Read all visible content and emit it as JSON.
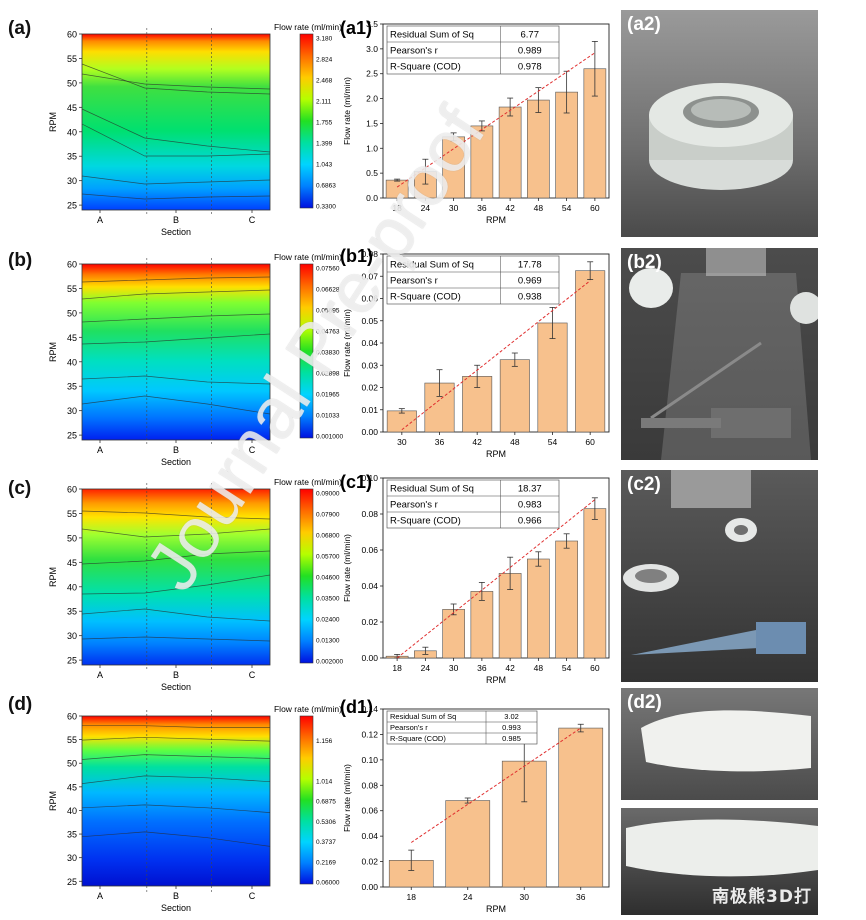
{
  "panels": [
    {
      "id": "a",
      "label": "(a)",
      "bar_label": "(a1)",
      "photo_label": "(a2)",
      "colorbar_title": "Flow rate (ml/min)",
      "colorbar_ticks": [
        "3.180",
        "2.824",
        "2.468",
        "2.111",
        "1.755",
        "1.399",
        "1.043",
        "0.6863",
        "0.3300"
      ],
      "stats": {
        "rows": [
          [
            "Residual Sum of Sq",
            "6.77"
          ],
          [
            "Pearson's r",
            "0.989"
          ],
          [
            "R-Square (COD)",
            "0.978"
          ]
        ]
      }
    },
    {
      "id": "b",
      "label": "(b)",
      "bar_label": "(b1)",
      "photo_label": "(b2)",
      "colorbar_title": "Flow rate (ml/min)",
      "colorbar_ticks": [
        "0.07560",
        "0.06628",
        "0.05695",
        "0.04763",
        "0.03830",
        "0.02898",
        "0.01965",
        "0.01033",
        "0.001000"
      ],
      "stats": {
        "rows": [
          [
            "Residual Sum of Sq",
            "17.78"
          ],
          [
            "Pearson's r",
            "0.969"
          ],
          [
            "R-Square (COD)",
            "0.938"
          ]
        ]
      }
    },
    {
      "id": "c",
      "label": "(c)",
      "bar_label": "(c1)",
      "photo_label": "(c2)",
      "colorbar_title": "Flow rate (ml/min)",
      "colorbar_ticks": [
        "0.09000",
        "0.07900",
        "0.06800",
        "0.05700",
        "0.04600",
        "0.03500",
        "0.02400",
        "0.01300",
        "0.002000"
      ],
      "stats": {
        "rows": [
          [
            "Residual Sum of Sq",
            "18.37"
          ],
          [
            "Pearson's r",
            "0.983"
          ],
          [
            "R-Square (COD)",
            "0.966"
          ]
        ]
      }
    },
    {
      "id": "d",
      "label": "(d)",
      "bar_label": "(d1)",
      "photo_label": "(d2)",
      "colorbar_title": "Flow rate (ml/min)",
      "colorbar_ticks": [
        "",
        "1.156",
        "",
        "1.014",
        "0.6875",
        "0.5306",
        "0.3737",
        "0.2169",
        "0.06000"
      ],
      "stats": {
        "rows": [
          [
            "Residual Sum of Sq",
            "3.02"
          ],
          [
            "Pearson's r",
            "0.993"
          ],
          [
            "R-Square (COD)",
            "0.985"
          ]
        ]
      }
    }
  ],
  "photo_watermark": "南极熊3D打",
  "watermark": "Journal Pre-proof",
  "contour_axes": {
    "xlabel": "Section",
    "ylabel": "RPM",
    "categories": [
      "A",
      "B",
      "C"
    ],
    "yticks": [
      25,
      30,
      35,
      40,
      45,
      50,
      55,
      60
    ],
    "ylim": [
      24,
      60
    ]
  },
  "colors": {
    "bar": "#f7c18d",
    "bar_edge": "#555555",
    "fit_line": "#e03030"
  },
  "chart_data": [
    {
      "type": "bar",
      "xlabel": "RPM",
      "ylabel": "Flow rate (ml/min)",
      "categories": [
        "18",
        "24",
        "30",
        "36",
        "42",
        "48",
        "54",
        "60"
      ],
      "values": [
        0.36,
        0.53,
        1.23,
        1.45,
        1.83,
        1.97,
        2.13,
        2.6
      ],
      "errors": [
        0.02,
        0.25,
        0.08,
        0.1,
        0.18,
        0.25,
        0.42,
        0.55
      ],
      "ylim": [
        0,
        3.5
      ],
      "yticks": [
        0.0,
        0.5,
        1.0,
        1.5,
        2.0,
        2.5,
        3.0,
        3.5
      ],
      "ytick_labels": [
        "0.0",
        "0.5",
        "1.0",
        "1.5",
        "2.0",
        "2.5",
        "3.0",
        "3.5"
      ],
      "fit": [
        0.22,
        2.92
      ]
    },
    {
      "type": "bar",
      "xlabel": "RPM",
      "ylabel": "Flow rate (ml/min)",
      "categories": [
        "30",
        "36",
        "42",
        "48",
        "54",
        "60"
      ],
      "values": [
        0.0095,
        0.022,
        0.025,
        0.0325,
        0.049,
        0.0725
      ],
      "errors": [
        0.001,
        0.006,
        0.005,
        0.003,
        0.007,
        0.004
      ],
      "ylim": [
        0,
        0.08
      ],
      "yticks": [
        0,
        0.01,
        0.02,
        0.03,
        0.04,
        0.05,
        0.06,
        0.07,
        0.08
      ],
      "ytick_labels": [
        "0.00",
        "0.01",
        "0.02",
        "0.03",
        "0.04",
        "0.05",
        "0.06",
        "0.07",
        "0.08"
      ],
      "fit": [
        0.001,
        0.068
      ]
    },
    {
      "type": "bar",
      "xlabel": "RPM",
      "ylabel": "Flow rate (ml/min)",
      "categories": [
        "18",
        "24",
        "30",
        "36",
        "42",
        "48",
        "54",
        "60"
      ],
      "values": [
        0.001,
        0.004,
        0.027,
        0.037,
        0.047,
        0.055,
        0.065,
        0.083
      ],
      "errors": [
        0.001,
        0.002,
        0.003,
        0.005,
        0.009,
        0.004,
        0.004,
        0.006
      ],
      "ylim": [
        0,
        0.1
      ],
      "yticks": [
        0,
        0.02,
        0.04,
        0.06,
        0.08,
        0.1
      ],
      "ytick_labels": [
        "0.00",
        "0.02",
        "0.04",
        "0.06",
        "0.08",
        "0.10"
      ],
      "fit": [
        -0.007,
        0.088
      ]
    },
    {
      "type": "bar",
      "xlabel": "RPM",
      "ylabel": "Flow rate (ml/min)",
      "categories": [
        "18",
        "24",
        "30",
        "36"
      ],
      "values": [
        0.021,
        0.068,
        0.099,
        0.125
      ],
      "errors": [
        0.008,
        0.002,
        0.032,
        0.003
      ],
      "ylim": [
        0,
        0.14
      ],
      "yticks": [
        0,
        0.02,
        0.04,
        0.06,
        0.08,
        0.1,
        0.12,
        0.14
      ],
      "ytick_labels": [
        "0.00",
        "0.02",
        "0.04",
        "0.06",
        "0.08",
        "0.10",
        "0.12",
        "0.14"
      ],
      "fit": [
        0.035,
        0.125
      ]
    }
  ]
}
